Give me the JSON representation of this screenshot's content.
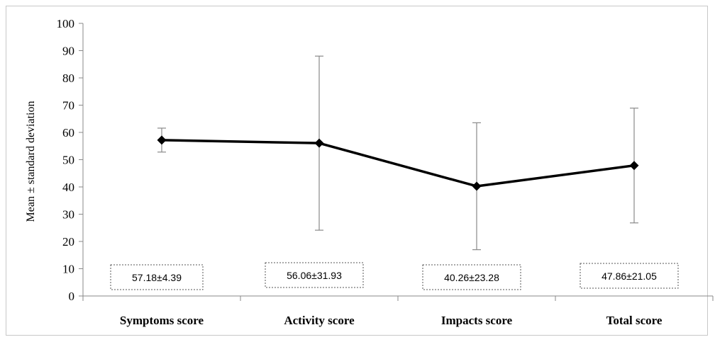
{
  "chart_data": {
    "type": "line",
    "title": "",
    "xlabel": "",
    "ylabel": "Mean ± standard deviation",
    "ylim": [
      0,
      100
    ],
    "yticks": [
      0,
      10,
      20,
      30,
      40,
      50,
      60,
      70,
      80,
      90,
      100
    ],
    "categories": [
      "Symptoms score",
      "Activity score",
      "Impacts score",
      "Total score"
    ],
    "series": [
      {
        "values": [
          57.18,
          56.06,
          40.26,
          47.86
        ],
        "error": [
          4.39,
          31.93,
          23.28,
          21.05
        ],
        "color": "#000000",
        "marker": "diamond"
      }
    ],
    "annotations": [
      "57.18±4.39",
      "56.06±31.93",
      "40.26±23.28",
      "47.86±21.05"
    ],
    "grid": false,
    "legend": "none"
  }
}
